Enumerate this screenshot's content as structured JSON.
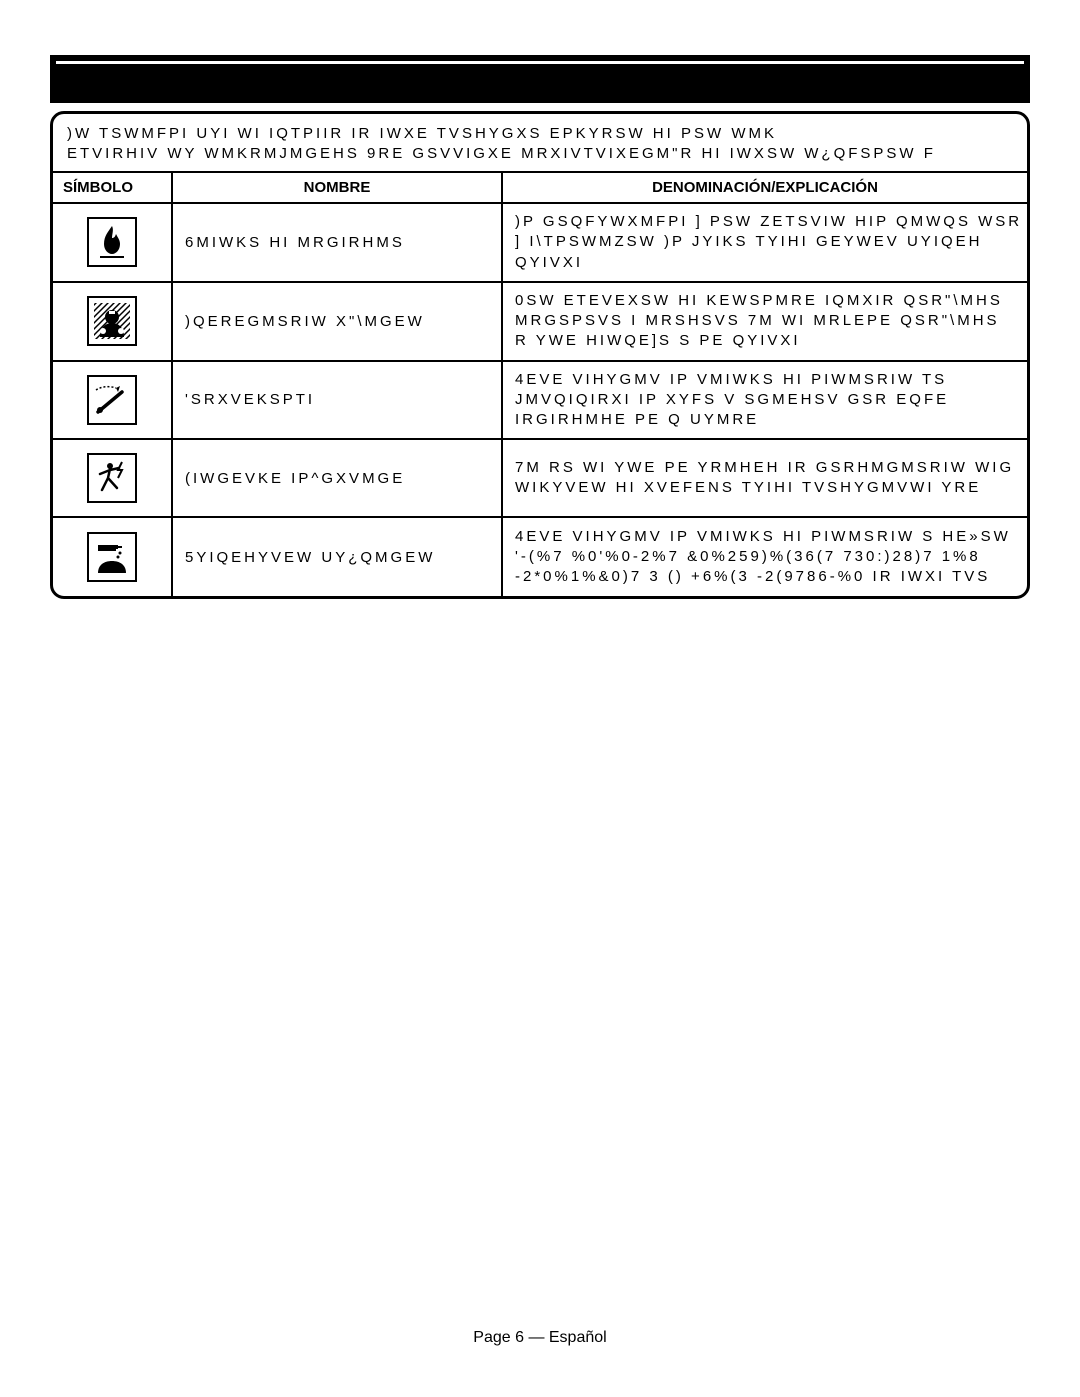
{
  "intro": {
    "line1": ")W TSWMFPI UYI WI IQTPIIR IR IWXE TVSHYGXS EPKYRSW HI PSW WMK",
    "line2": "ETVIRHIV WY WMKRMJMGEHS  9RE GSVVIGXE MRXIVTVIXEGM\"R HI IWXSW W¿QFSPSW F"
  },
  "headers": {
    "symbol": "SÍMBOLO",
    "name": "NOMBRE",
    "explanation": "DENOMINACIÓN/EXPLICACIÓN"
  },
  "rows": [
    {
      "icon": "fire",
      "name": "6MIWKS HI MRGIRHMS",
      "exp": ")P GSQFYWXMFPI ] PSW ZETSVIW HIP QMWQS WSR\n] I\\TPSWMZSW  )P JYIKS TYIHI GEYWEV UYIQEH\nQYIVXI"
    },
    {
      "icon": "toxic",
      "name": ")QEREGMSRIW X\"\\MGEW",
      "exp": "0SW ETEVEXSW HI KEWSPMRE IQMXIR QSR\"\\MHS\nMRGSPSVS I MRSHSVS  7M WI MRLEPE QSR\"\\MHS\nR YWE  HIWQE]S S PE QYIVXI"
    },
    {
      "icon": "kickback",
      "name": "'SRXVEKSPTI",
      "exp": "4EVE VIHYGMV IP VMIWKS HI PIWMSRIW TS\nJMVQIQIRXI IP XYFS V SGMEHSV GSR EQFE\nIRGIRHMHE PE Q UYMRE"
    },
    {
      "icon": "shock",
      "name": "(IWGEVKE IP^GXVMGE",
      "exp": "7M RS WI YWE PE YRMHEH IR GSRHMGMSRIW WIG\nWIKYVEW HI XVEFENS  TYIHI TVSHYGMVWI YRE"
    },
    {
      "icon": "chemical",
      "name": "5YIQEHYVEW UY¿QMGEW",
      "exp": "4EVE VIHYGMV IP VMIWKS HI PIWMSRIW S HE»SW\n'-(%7 %0'%0-2%7 &0%259)%(36(7 730:)28)7 1%8\n-2*0%1%&0)7 3 () +6%(3 -2(9786-%0 IR IWXI TVS"
    }
  ],
  "footer": "Page 6    — Español",
  "colors": {
    "border": "#000000",
    "bg": "#ffffff"
  }
}
